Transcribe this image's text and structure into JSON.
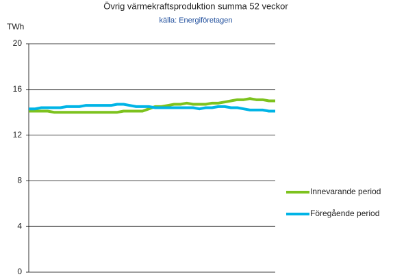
{
  "chart_data": {
    "type": "line",
    "title": "Övrig värmekraftsproduktion summa 52 veckor",
    "subtitle": "källa: Energiföretagen",
    "y_label": "TWh",
    "ylim": [
      0,
      20
    ],
    "yticks": [
      0,
      4,
      8,
      12,
      16,
      20
    ],
    "grid": true,
    "legend": "right",
    "series": [
      {
        "name": "Innevarande period",
        "color": "#7dc21e",
        "values": [
          14.1,
          14.1,
          14.1,
          14.1,
          14.0,
          14.0,
          14.0,
          14.0,
          14.0,
          14.0,
          14.0,
          14.0,
          14.0,
          14.0,
          14.0,
          14.1,
          14.1,
          14.1,
          14.1,
          14.3,
          14.5,
          14.5,
          14.6,
          14.7,
          14.7,
          14.8,
          14.7,
          14.7,
          14.7,
          14.8,
          14.8,
          14.9,
          15.0,
          15.1,
          15.1,
          15.2,
          15.1,
          15.1,
          15.0,
          15.0
        ]
      },
      {
        "name": "Föregående period",
        "color": "#00b4e6",
        "values": [
          14.3,
          14.3,
          14.4,
          14.4,
          14.4,
          14.4,
          14.5,
          14.5,
          14.5,
          14.6,
          14.6,
          14.6,
          14.6,
          14.6,
          14.7,
          14.7,
          14.6,
          14.5,
          14.5,
          14.5,
          14.4,
          14.4,
          14.4,
          14.4,
          14.4,
          14.4,
          14.4,
          14.3,
          14.4,
          14.4,
          14.5,
          14.5,
          14.4,
          14.4,
          14.3,
          14.2,
          14.2,
          14.2,
          14.1,
          14.1
        ]
      }
    ]
  }
}
